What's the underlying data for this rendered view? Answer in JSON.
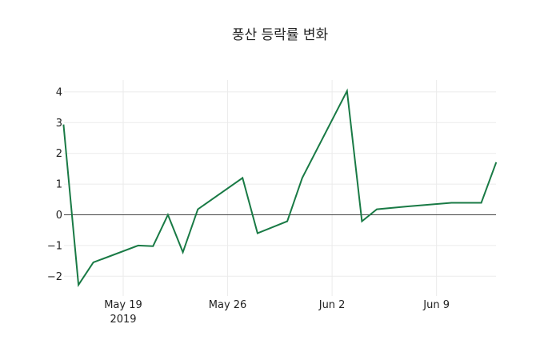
{
  "chart_data": {
    "type": "line",
    "title": "풍산 등락률 변화",
    "xlabel": "",
    "ylabel": "",
    "ylim": [
      -2.6,
      4.4
    ],
    "grid": true,
    "line_color": "#197a45",
    "x_ticks": [
      {
        "date": "2019-05-19",
        "label": "May 19",
        "sublabel": "2019"
      },
      {
        "date": "2019-05-26",
        "label": "May 26",
        "sublabel": ""
      },
      {
        "date": "2019-06-02",
        "label": "Jun 2",
        "sublabel": ""
      },
      {
        "date": "2019-06-09",
        "label": "Jun 9",
        "sublabel": ""
      }
    ],
    "y_ticks": [
      4,
      3,
      2,
      1,
      0,
      -1,
      -2
    ],
    "y_tick_labels": [
      "4",
      "3",
      "2",
      "1",
      "0",
      "−1",
      "−2"
    ],
    "x": [
      "2019-05-15",
      "2019-05-16",
      "2019-05-17",
      "2019-05-20",
      "2019-05-21",
      "2019-05-22",
      "2019-05-23",
      "2019-05-24",
      "2019-05-27",
      "2019-05-28",
      "2019-05-30",
      "2019-05-31",
      "2019-06-03",
      "2019-06-04",
      "2019-06-05",
      "2019-06-07",
      "2019-06-10",
      "2019-06-11",
      "2019-06-12",
      "2019-06-13"
    ],
    "series": [
      {
        "name": "등락률",
        "values": [
          2.94,
          -2.28,
          -1.55,
          -1.0,
          -1.02,
          0.0,
          -1.22,
          0.18,
          1.2,
          -0.6,
          -0.21,
          1.2,
          4.03,
          -0.21,
          0.18,
          0.27,
          0.39,
          0.39,
          0.39,
          1.71
        ]
      }
    ]
  }
}
